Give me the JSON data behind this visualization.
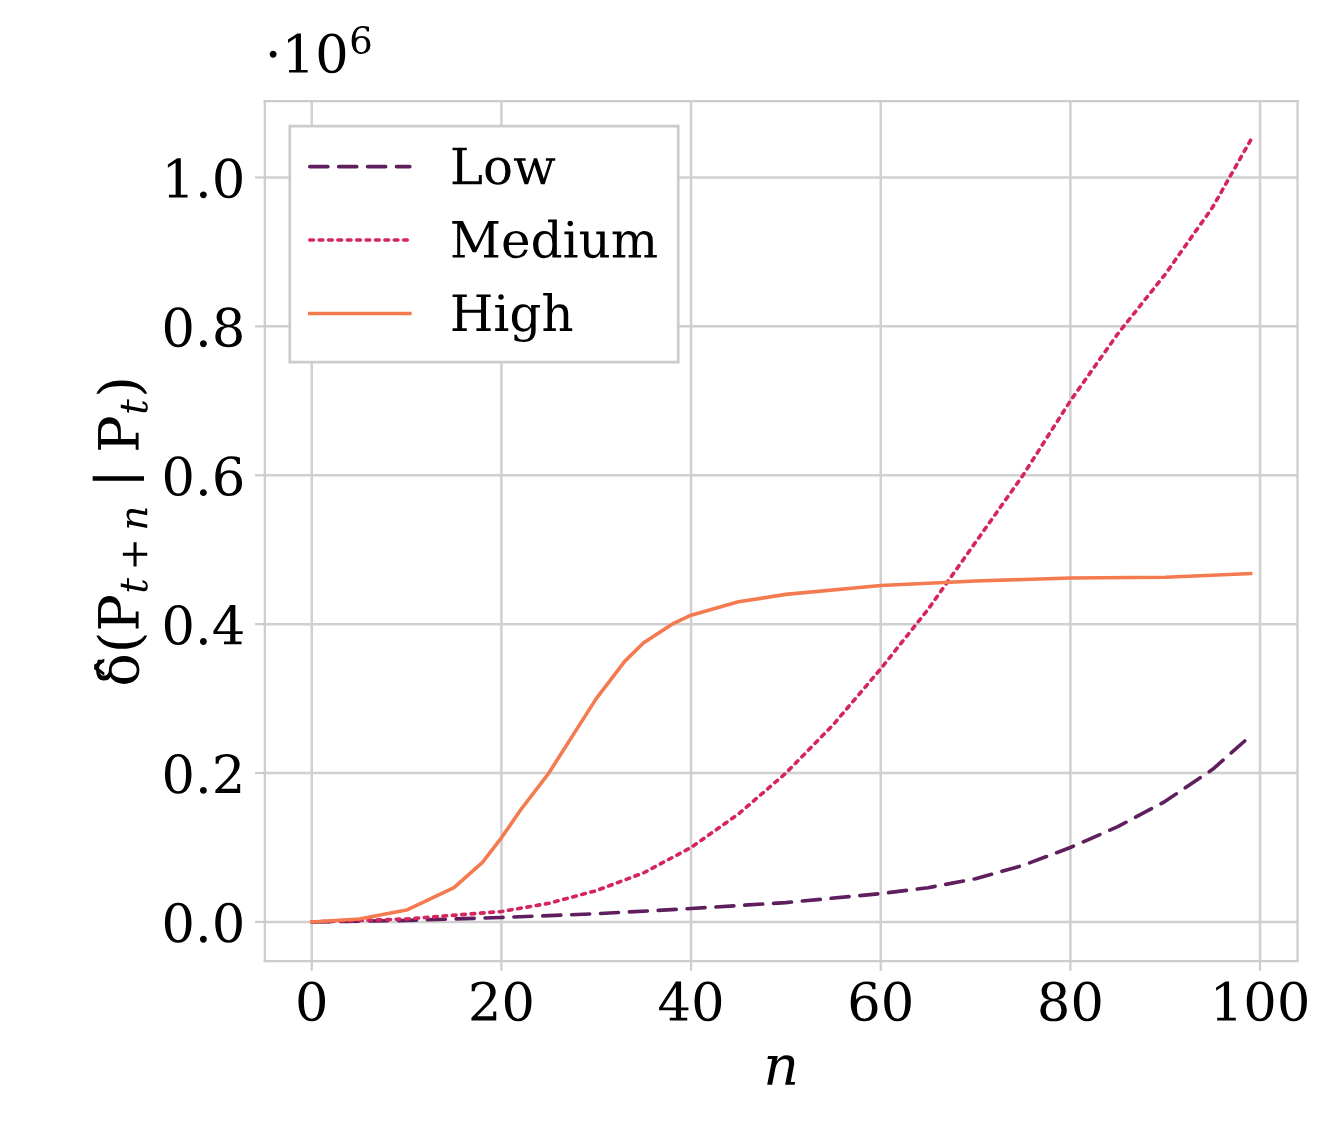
{
  "chart_data": {
    "type": "line",
    "xlabel": "n",
    "ylabel": "δ̂(P$_{t+n}$ ∣ P$_{t}$)",
    "annotations": [
      "·10$^{6}$"
    ],
    "series": [
      {
        "name": "Low",
        "color": "#5f1f5e",
        "line_style": "dashed",
        "x": [
          0,
          10,
          20,
          30,
          40,
          50,
          60,
          65,
          70,
          75,
          80,
          85,
          90,
          95,
          99
        ],
        "values": [
          0,
          0.002,
          0.006,
          0.011,
          0.018,
          0.026,
          0.038,
          0.046,
          0.058,
          0.076,
          0.1,
          0.128,
          0.162,
          0.205,
          0.25
        ]
      },
      {
        "name": "Medium",
        "color": "#d6245c",
        "line_style": "dotted",
        "x": [
          0,
          10,
          20,
          25,
          30,
          35,
          40,
          45,
          50,
          55,
          60,
          65,
          70,
          75,
          80,
          85,
          90,
          95,
          99
        ],
        "values": [
          0,
          0.004,
          0.014,
          0.025,
          0.042,
          0.066,
          0.1,
          0.145,
          0.2,
          0.265,
          0.34,
          0.42,
          0.51,
          0.6,
          0.7,
          0.79,
          0.87,
          0.96,
          1.05
        ]
      },
      {
        "name": "High",
        "color": "#f47b50",
        "line_style": "solid",
        "x": [
          0,
          5,
          10,
          15,
          18,
          20,
          22,
          25,
          28,
          30,
          33,
          35,
          38,
          40,
          45,
          50,
          60,
          70,
          80,
          90,
          99
        ],
        "values": [
          0,
          0.004,
          0.016,
          0.046,
          0.08,
          0.113,
          0.15,
          0.2,
          0.26,
          0.3,
          0.35,
          0.375,
          0.4,
          0.412,
          0.43,
          0.44,
          0.452,
          0.458,
          0.462,
          0.463,
          0.468
        ]
      }
    ],
    "xlim": [
      -4.95,
      103.95
    ],
    "ylim": [
      -0.0525,
      1.1025
    ],
    "xticks": [
      0,
      20,
      40,
      60,
      80,
      100
    ],
    "yticks": [
      {
        "value": 0,
        "label": "0.0"
      },
      {
        "value": 0.2,
        "label": "0.2"
      },
      {
        "value": 0.4,
        "label": "0.4"
      },
      {
        "value": 0.6,
        "label": "0.6"
      },
      {
        "value": 0.8,
        "label": "0.8"
      },
      {
        "value": 1.0,
        "label": "1.0"
      }
    ],
    "grid": true,
    "legend": "top left"
  }
}
